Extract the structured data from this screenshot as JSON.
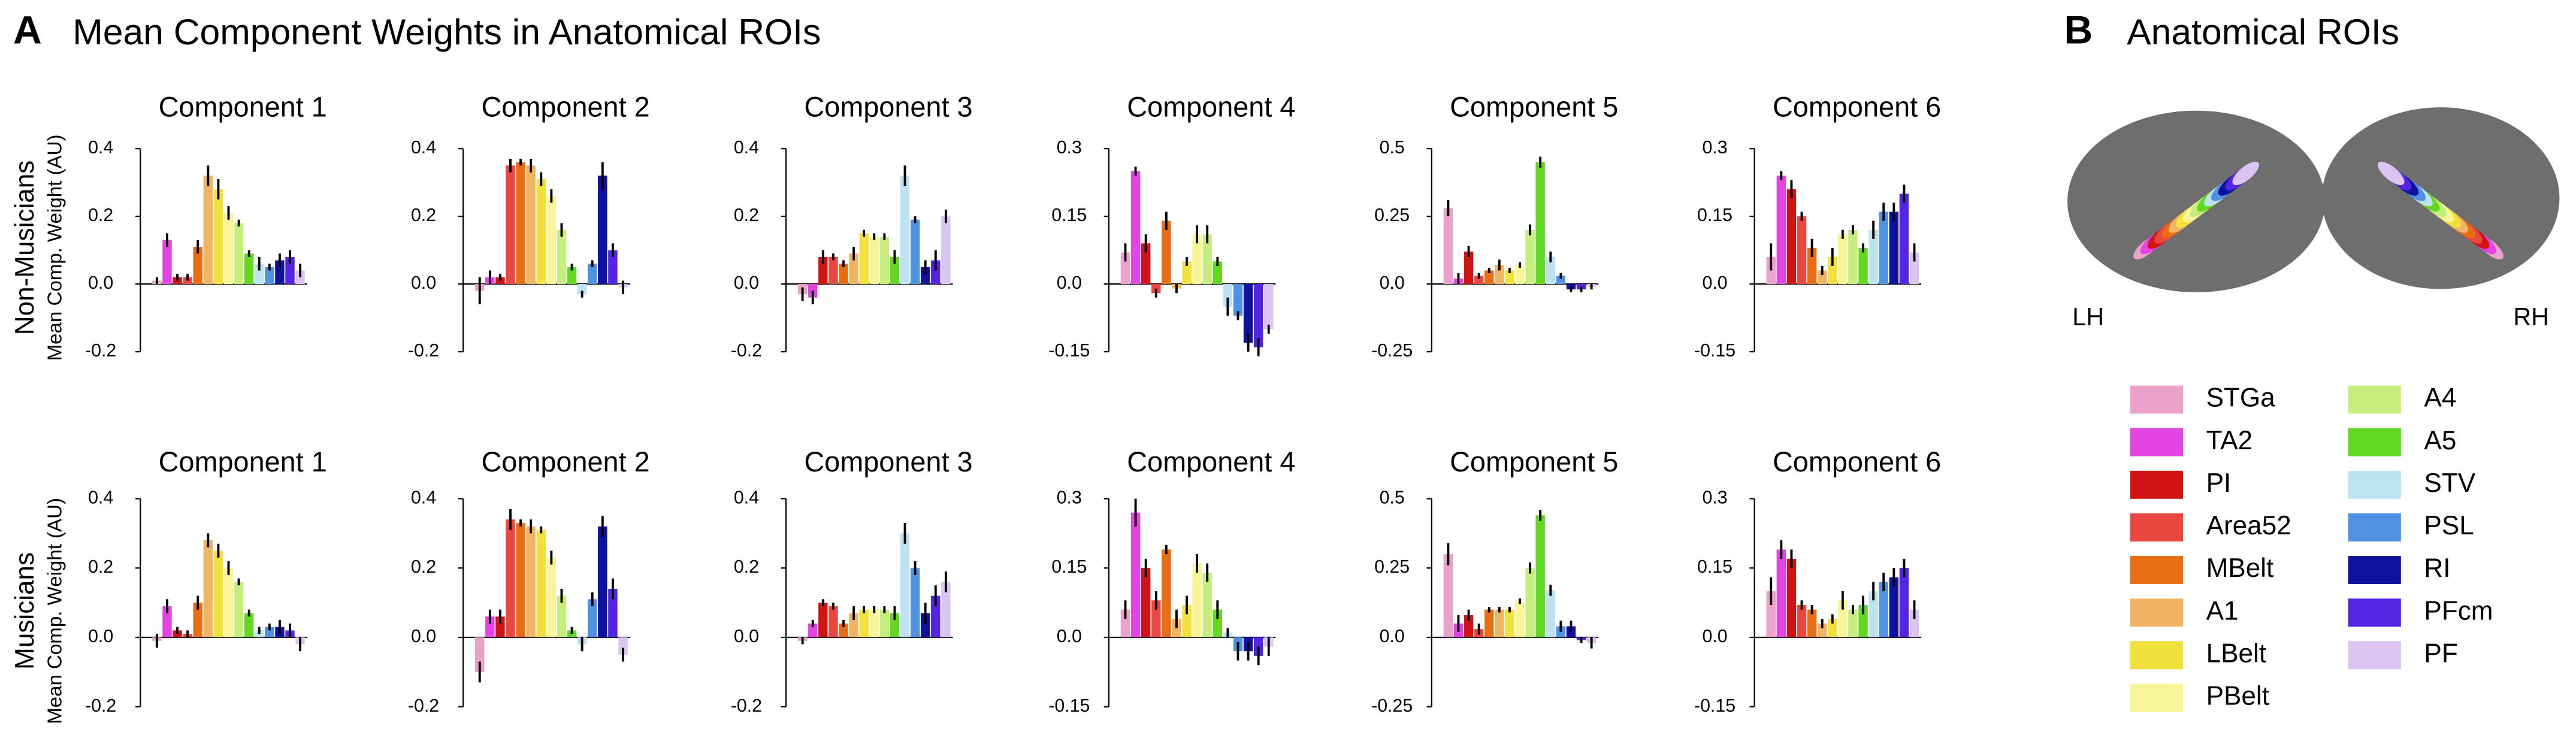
{
  "figure": {
    "panel_a": "A",
    "title_a": "Mean Component Weights in Anatomical ROIs",
    "panel_b": "B",
    "title_b": "Anatomical ROIs",
    "lh": "LH",
    "rh": "RH",
    "y_label": "Mean Comp. Weight (AU)",
    "rows": [
      "Non-Musicians",
      "Musicians"
    ]
  },
  "rois": [
    {
      "name": "STGa",
      "color": "#eaa2cb"
    },
    {
      "name": "TA2",
      "color": "#e444e4"
    },
    {
      "name": "PI",
      "color": "#d01414"
    },
    {
      "name": "Area52",
      "color": "#e8483f"
    },
    {
      "name": "MBelt",
      "color": "#e96d12"
    },
    {
      "name": "A1",
      "color": "#f0b564"
    },
    {
      "name": "LBelt",
      "color": "#f2e03c"
    },
    {
      "name": "PBelt",
      "color": "#f7f597"
    },
    {
      "name": "A4",
      "color": "#c6ee7e"
    },
    {
      "name": "A5",
      "color": "#62d822"
    },
    {
      "name": "STV",
      "color": "#bde2f1"
    },
    {
      "name": "PSL",
      "color": "#4f92e2"
    },
    {
      "name": "RI",
      "color": "#10129e"
    },
    {
      "name": "PFcm",
      "color": "#5424e4"
    },
    {
      "name": "PF",
      "color": "#dcc4f2"
    }
  ],
  "chart_data": [
    {
      "type": "bar",
      "title": "Component 1",
      "ylim": [
        -0.2,
        0.4
      ],
      "yticks": [
        0.4,
        0.2,
        {
          "value": 0,
          "label": "0.0"
        },
        -0.2
      ],
      "values": [
        0.01,
        0.13,
        0.02,
        0.02,
        0.11,
        0.32,
        0.28,
        0.21,
        0.18,
        0.09,
        0.06,
        0.05,
        0.07,
        0.08,
        0.04
      ],
      "errors": [
        0.01,
        0.02,
        0.01,
        0.01,
        0.02,
        0.03,
        0.03,
        0.02,
        0.01,
        0.01,
        0.02,
        0.01,
        0.02,
        0.02,
        0.02
      ]
    },
    {
      "type": "bar",
      "title": "Component 2",
      "ylim": [
        -0.2,
        0.4
      ],
      "yticks": [
        0.4,
        0.2,
        {
          "value": 0,
          "label": "0.0"
        },
        -0.2
      ],
      "values": [
        -0.02,
        0.02,
        0.02,
        0.35,
        0.36,
        0.35,
        0.31,
        0.26,
        0.16,
        0.05,
        -0.03,
        0.06,
        0.32,
        0.1,
        -0.01
      ],
      "errors": [
        0.04,
        0.02,
        0.01,
        0.02,
        0.01,
        0.02,
        0.02,
        0.02,
        0.02,
        0.01,
        0.01,
        0.01,
        0.04,
        0.02,
        0.02
      ]
    },
    {
      "type": "bar",
      "title": "Component 3",
      "ylim": [
        -0.2,
        0.4
      ],
      "yticks": [
        0.4,
        0.2,
        {
          "value": 0,
          "label": "0.0"
        },
        -0.2
      ],
      "values": [
        -0.03,
        -0.04,
        0.08,
        0.08,
        0.06,
        0.09,
        0.15,
        0.14,
        0.14,
        0.08,
        0.32,
        0.19,
        0.05,
        0.07,
        0.2
      ],
      "errors": [
        0.02,
        0.02,
        0.02,
        0.01,
        0.01,
        0.02,
        0.01,
        0.01,
        0.01,
        0.02,
        0.03,
        0.01,
        0.02,
        0.03,
        0.02
      ]
    },
    {
      "type": "bar",
      "title": "Component 4",
      "ylim": [
        -0.15,
        0.3
      ],
      "yticks": [
        0.3,
        0.15,
        {
          "value": 0,
          "label": "0.0"
        },
        -0.15
      ],
      "values": [
        0.07,
        0.25,
        0.09,
        -0.02,
        0.14,
        -0.01,
        0.05,
        0.11,
        0.11,
        0.05,
        -0.05,
        -0.07,
        -0.13,
        -0.14,
        -0.1
      ],
      "errors": [
        0.02,
        0.01,
        0.02,
        0.01,
        0.02,
        0.01,
        0.01,
        0.02,
        0.02,
        0.01,
        0.02,
        0.01,
        0.02,
        0.02,
        0.01
      ]
    },
    {
      "type": "bar",
      "title": "Component 5",
      "ylim": [
        -0.25,
        0.5
      ],
      "yticks": [
        0.5,
        0.25,
        {
          "value": 0,
          "label": "0.0"
        },
        -0.25
      ],
      "values": [
        0.28,
        0.02,
        0.12,
        0.03,
        0.05,
        0.07,
        0.05,
        0.07,
        0.2,
        0.45,
        0.1,
        0.03,
        -0.02,
        -0.02,
        -0.01
      ],
      "errors": [
        0.03,
        0.02,
        0.02,
        0.01,
        0.01,
        0.02,
        0.01,
        0.01,
        0.02,
        0.02,
        0.02,
        0.01,
        0.01,
        0.01,
        0.01
      ]
    },
    {
      "type": "bar",
      "title": "Component 6",
      "ylim": [
        -0.15,
        0.3
      ],
      "yticks": [
        0.3,
        0.15,
        {
          "value": 0,
          "label": "0.0"
        },
        -0.15
      ],
      "values": [
        0.06,
        0.24,
        0.21,
        0.15,
        0.08,
        0.03,
        0.06,
        0.11,
        0.12,
        0.08,
        0.12,
        0.16,
        0.16,
        0.2,
        0.07
      ],
      "errors": [
        0.03,
        0.01,
        0.02,
        0.01,
        0.02,
        0.01,
        0.02,
        0.01,
        0.01,
        0.01,
        0.02,
        0.02,
        0.02,
        0.02,
        0.02
      ]
    },
    {
      "type": "bar",
      "title": "Component 1",
      "ylim": [
        -0.2,
        0.4
      ],
      "yticks": [
        0.4,
        0.2,
        {
          "value": 0,
          "label": "0.0"
        },
        -0.2
      ],
      "values": [
        -0.01,
        0.09,
        0.02,
        0.01,
        0.1,
        0.28,
        0.25,
        0.2,
        0.16,
        0.07,
        0.02,
        0.03,
        0.03,
        0.02,
        -0.02
      ],
      "errors": [
        0.02,
        0.02,
        0.01,
        0.01,
        0.02,
        0.02,
        0.02,
        0.02,
        0.01,
        0.01,
        0.01,
        0.01,
        0.02,
        0.02,
        0.02
      ]
    },
    {
      "type": "bar",
      "title": "Component 2",
      "ylim": [
        -0.2,
        0.4
      ],
      "yticks": [
        0.4,
        0.2,
        {
          "value": 0,
          "label": "0.0"
        },
        -0.2
      ],
      "values": [
        -0.1,
        0.06,
        0.06,
        0.34,
        0.33,
        0.32,
        0.31,
        0.23,
        0.12,
        0.02,
        -0.02,
        0.11,
        0.32,
        0.14,
        -0.05
      ],
      "errors": [
        0.03,
        0.02,
        0.02,
        0.03,
        0.01,
        0.02,
        0.01,
        0.02,
        0.02,
        0.01,
        0.02,
        0.02,
        0.03,
        0.03,
        0.02
      ]
    },
    {
      "type": "bar",
      "title": "Component 3",
      "ylim": [
        -0.2,
        0.4
      ],
      "yticks": [
        0.4,
        0.2,
        {
          "value": 0,
          "label": "0.0"
        },
        -0.2
      ],
      "values": [
        -0.01,
        0.04,
        0.1,
        0.09,
        0.04,
        0.07,
        0.08,
        0.08,
        0.08,
        0.07,
        0.3,
        0.2,
        0.07,
        0.12,
        0.16
      ],
      "errors": [
        0.01,
        0.01,
        0.01,
        0.01,
        0.01,
        0.02,
        0.01,
        0.01,
        0.01,
        0.02,
        0.03,
        0.02,
        0.03,
        0.03,
        0.03
      ]
    },
    {
      "type": "bar",
      "title": "Component 4",
      "ylim": [
        -0.15,
        0.3
      ],
      "yticks": [
        0.3,
        0.15,
        {
          "value": 0,
          "label": "0.0"
        },
        -0.15
      ],
      "values": [
        0.06,
        0.27,
        0.15,
        0.08,
        0.19,
        0.04,
        0.07,
        0.16,
        0.14,
        0.06,
        0.01,
        -0.03,
        -0.03,
        -0.04,
        -0.02
      ],
      "errors": [
        0.02,
        0.03,
        0.02,
        0.02,
        0.01,
        0.02,
        0.02,
        0.02,
        0.02,
        0.02,
        0.01,
        0.02,
        0.02,
        0.02,
        0.02
      ]
    },
    {
      "type": "bar",
      "title": "Component 5",
      "ylim": [
        -0.25,
        0.5
      ],
      "yticks": [
        0.5,
        0.25,
        {
          "value": 0,
          "label": "0.0"
        },
        -0.25
      ],
      "values": [
        0.3,
        0.05,
        0.08,
        0.03,
        0.1,
        0.1,
        0.1,
        0.13,
        0.25,
        0.44,
        0.17,
        0.04,
        0.04,
        -0.01,
        -0.02
      ],
      "errors": [
        0.04,
        0.03,
        0.02,
        0.02,
        0.01,
        0.01,
        0.01,
        0.01,
        0.02,
        0.02,
        0.02,
        0.02,
        0.02,
        0.01,
        0.02
      ]
    },
    {
      "type": "bar",
      "title": "Component 6",
      "ylim": [
        -0.15,
        0.3
      ],
      "yticks": [
        0.3,
        0.15,
        {
          "value": 0,
          "label": "0.0"
        },
        -0.15
      ],
      "values": [
        0.1,
        0.19,
        0.17,
        0.07,
        0.06,
        0.03,
        0.04,
        0.08,
        0.06,
        0.07,
        0.1,
        0.12,
        0.13,
        0.15,
        0.06
      ],
      "errors": [
        0.03,
        0.02,
        0.02,
        0.01,
        0.01,
        0.01,
        0.01,
        0.02,
        0.01,
        0.02,
        0.02,
        0.02,
        0.02,
        0.02,
        0.02
      ]
    }
  ]
}
